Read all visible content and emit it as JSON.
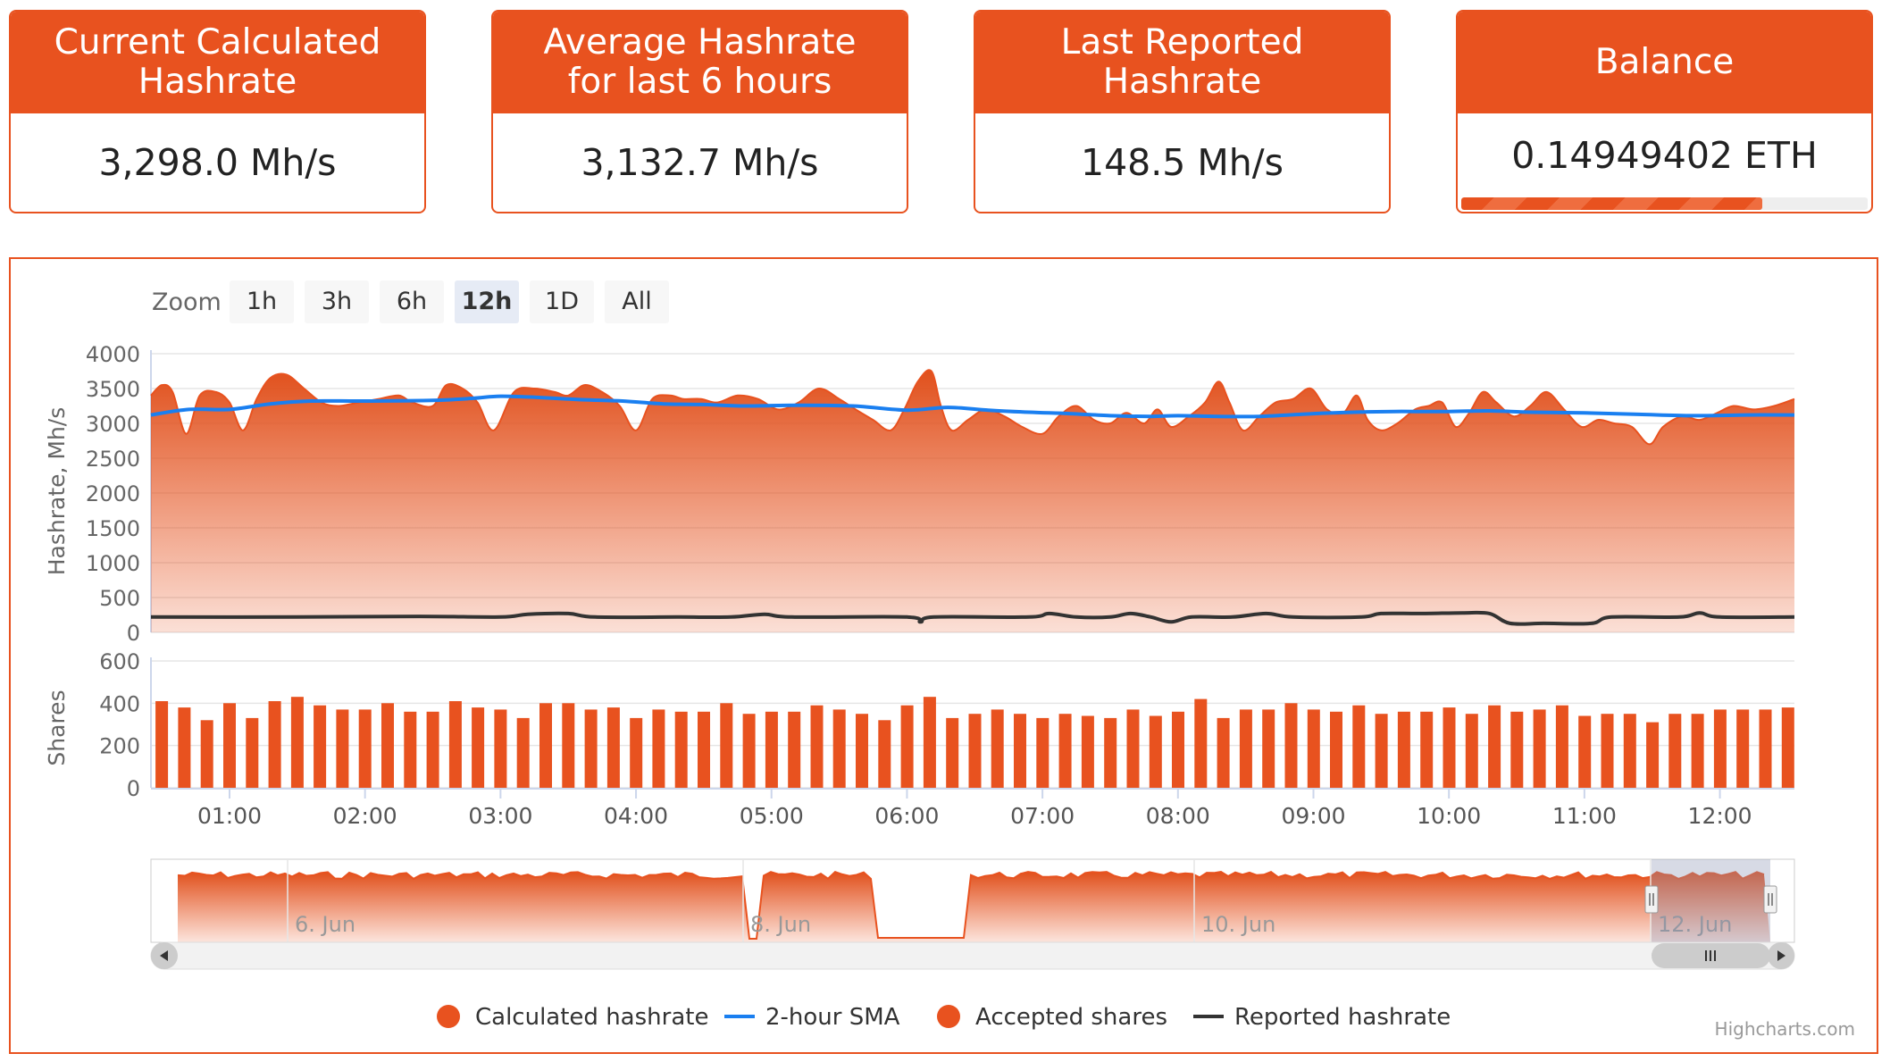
{
  "cards": [
    {
      "title": "Current Calculated\nHashrate",
      "value": "3,298.0 Mh/s"
    },
    {
      "title": "Average Hashrate\nfor last 6 hours",
      "value": "3,132.7 Mh/s"
    },
    {
      "title": "Last Reported\nHashrate",
      "value": "148.5 Mh/s"
    },
    {
      "title": "Balance",
      "value": "0.14949402 ETH",
      "progress_fraction": 0.74
    }
  ],
  "zoom": {
    "label": "Zoom",
    "buttons": [
      "1h",
      "3h",
      "6h",
      "12h",
      "1D",
      "All"
    ],
    "selected": "12h"
  },
  "colors": {
    "accent": "#e8521f",
    "sma": "#1a7ff0",
    "reported": "#333333",
    "button_bg": "#f7f7f7",
    "button_selected_bg": "#e6ebf5"
  },
  "chart_data": [
    {
      "type": "area",
      "ylabel": "Hashrate, Mh/s",
      "ylim": [
        0,
        4000
      ],
      "yticks": [
        0,
        500,
        1000,
        1500,
        2000,
        2500,
        3000,
        3500,
        4000
      ],
      "xlim": [
        0.42,
        12.55
      ],
      "xticks": [
        {
          "v": 1,
          "label": "01:00"
        },
        {
          "v": 2,
          "label": "02:00"
        },
        {
          "v": 3,
          "label": "03:00"
        },
        {
          "v": 4,
          "label": "04:00"
        },
        {
          "v": 5,
          "label": "05:00"
        },
        {
          "v": 6,
          "label": "06:00"
        },
        {
          "v": 7,
          "label": "07:00"
        },
        {
          "v": 8,
          "label": "08:00"
        },
        {
          "v": 9,
          "label": "09:00"
        },
        {
          "v": 10,
          "label": "10:00"
        },
        {
          "v": 11,
          "label": "11:00"
        },
        {
          "v": 12,
          "label": "12:00"
        }
      ],
      "series": [
        {
          "name": "Calculated hashrate",
          "type": "area",
          "color": "#e8521f",
          "points": [
            [
              0.42,
              3400
            ],
            [
              0.5,
              3550
            ],
            [
              0.58,
              3450
            ],
            [
              0.68,
              2850
            ],
            [
              0.78,
              3400
            ],
            [
              0.9,
              3450
            ],
            [
              1.0,
              3300
            ],
            [
              1.1,
              2900
            ],
            [
              1.2,
              3350
            ],
            [
              1.3,
              3650
            ],
            [
              1.42,
              3700
            ],
            [
              1.55,
              3500
            ],
            [
              1.68,
              3300
            ],
            [
              1.8,
              3250
            ],
            [
              1.95,
              3300
            ],
            [
              2.1,
              3350
            ],
            [
              2.25,
              3400
            ],
            [
              2.35,
              3300
            ],
            [
              2.5,
              3250
            ],
            [
              2.6,
              3550
            ],
            [
              2.72,
              3500
            ],
            [
              2.83,
              3300
            ],
            [
              2.95,
              2900
            ],
            [
              3.1,
              3450
            ],
            [
              3.25,
              3500
            ],
            [
              3.4,
              3450
            ],
            [
              3.5,
              3400
            ],
            [
              3.62,
              3550
            ],
            [
              3.75,
              3450
            ],
            [
              3.88,
              3250
            ],
            [
              4.0,
              2900
            ],
            [
              4.12,
              3350
            ],
            [
              4.25,
              3400
            ],
            [
              4.35,
              3350
            ],
            [
              4.48,
              3350
            ],
            [
              4.6,
              3300
            ],
            [
              4.75,
              3400
            ],
            [
              4.9,
              3350
            ],
            [
              5.05,
              3200
            ],
            [
              5.2,
              3300
            ],
            [
              5.35,
              3500
            ],
            [
              5.5,
              3350
            ],
            [
              5.62,
              3200
            ],
            [
              5.75,
              3050
            ],
            [
              5.88,
              2900
            ],
            [
              5.98,
              3200
            ],
            [
              6.08,
              3600
            ],
            [
              6.18,
              3750
            ],
            [
              6.25,
              3250
            ],
            [
              6.33,
              2900
            ],
            [
              6.45,
              3050
            ],
            [
              6.58,
              3200
            ],
            [
              6.72,
              3100
            ],
            [
              6.85,
              2950
            ],
            [
              7.0,
              2850
            ],
            [
              7.12,
              3100
            ],
            [
              7.25,
              3250
            ],
            [
              7.38,
              3050
            ],
            [
              7.5,
              3000
            ],
            [
              7.62,
              3150
            ],
            [
              7.75,
              3000
            ],
            [
              7.85,
              3200
            ],
            [
              7.95,
              2950
            ],
            [
              8.08,
              3100
            ],
            [
              8.2,
              3300
            ],
            [
              8.3,
              3600
            ],
            [
              8.38,
              3300
            ],
            [
              8.48,
              2900
            ],
            [
              8.6,
              3100
            ],
            [
              8.72,
              3300
            ],
            [
              8.85,
              3350
            ],
            [
              8.98,
              3500
            ],
            [
              9.1,
              3200
            ],
            [
              9.22,
              3150
            ],
            [
              9.32,
              3400
            ],
            [
              9.4,
              3050
            ],
            [
              9.5,
              2900
            ],
            [
              9.62,
              3000
            ],
            [
              9.75,
              3200
            ],
            [
              9.85,
              3250
            ],
            [
              9.95,
              3300
            ],
            [
              10.05,
              2950
            ],
            [
              10.15,
              3150
            ],
            [
              10.25,
              3450
            ],
            [
              10.35,
              3300
            ],
            [
              10.48,
              3100
            ],
            [
              10.6,
              3250
            ],
            [
              10.72,
              3450
            ],
            [
              10.85,
              3200
            ],
            [
              10.98,
              2950
            ],
            [
              11.1,
              3050
            ],
            [
              11.22,
              3000
            ],
            [
              11.35,
              2950
            ],
            [
              11.48,
              2700
            ],
            [
              11.58,
              2950
            ],
            [
              11.72,
              3100
            ],
            [
              11.85,
              3050
            ],
            [
              11.98,
              3150
            ],
            [
              12.1,
              3250
            ],
            [
              12.25,
              3200
            ],
            [
              12.4,
              3250
            ],
            [
              12.55,
              3350
            ]
          ]
        },
        {
          "name": "2-hour SMA",
          "type": "line",
          "color": "#1a7ff0",
          "points": [
            [
              0.42,
              3120
            ],
            [
              0.7,
              3200
            ],
            [
              1.0,
              3200
            ],
            [
              1.3,
              3280
            ],
            [
              1.6,
              3320
            ],
            [
              2.0,
              3320
            ],
            [
              2.5,
              3330
            ],
            [
              2.8,
              3360
            ],
            [
              3.0,
              3390
            ],
            [
              3.3,
              3370
            ],
            [
              3.6,
              3340
            ],
            [
              3.9,
              3320
            ],
            [
              4.2,
              3280
            ],
            [
              4.5,
              3270
            ],
            [
              4.8,
              3250
            ],
            [
              5.2,
              3260
            ],
            [
              5.6,
              3250
            ],
            [
              6.0,
              3190
            ],
            [
              6.3,
              3230
            ],
            [
              6.6,
              3190
            ],
            [
              6.9,
              3160
            ],
            [
              7.2,
              3140
            ],
            [
              7.5,
              3110
            ],
            [
              7.8,
              3100
            ],
            [
              8.0,
              3110
            ],
            [
              8.3,
              3100
            ],
            [
              8.6,
              3100
            ],
            [
              9.0,
              3140
            ],
            [
              9.3,
              3160
            ],
            [
              9.6,
              3170
            ],
            [
              10.0,
              3170
            ],
            [
              10.3,
              3180
            ],
            [
              10.6,
              3160
            ],
            [
              11.0,
              3150
            ],
            [
              11.4,
              3130
            ],
            [
              11.8,
              3110
            ],
            [
              12.2,
              3120
            ],
            [
              12.55,
              3120
            ]
          ]
        },
        {
          "name": "Reported hashrate",
          "type": "line",
          "color": "#333333",
          "points": [
            [
              0.42,
              220
            ],
            [
              1.5,
              220
            ],
            [
              2.4,
              230
            ],
            [
              3.0,
              220
            ],
            [
              3.2,
              260
            ],
            [
              3.5,
              270
            ],
            [
              3.7,
              220
            ],
            [
              4.3,
              220
            ],
            [
              4.7,
              220
            ],
            [
              4.95,
              260
            ],
            [
              5.15,
              220
            ],
            [
              6.0,
              220
            ],
            [
              6.1,
              150
            ],
            [
              6.2,
              220
            ],
            [
              6.9,
              220
            ],
            [
              7.05,
              270
            ],
            [
              7.25,
              220
            ],
            [
              7.5,
              220
            ],
            [
              7.65,
              270
            ],
            [
              7.8,
              220
            ],
            [
              7.95,
              150
            ],
            [
              8.1,
              220
            ],
            [
              8.4,
              220
            ],
            [
              8.65,
              270
            ],
            [
              8.85,
              220
            ],
            [
              9.35,
              220
            ],
            [
              9.5,
              270
            ],
            [
              9.8,
              270
            ],
            [
              10.1,
              280
            ],
            [
              10.3,
              270
            ],
            [
              10.45,
              130
            ],
            [
              10.7,
              130
            ],
            [
              11.05,
              130
            ],
            [
              11.2,
              220
            ],
            [
              11.7,
              220
            ],
            [
              11.85,
              280
            ],
            [
              12.0,
              220
            ],
            [
              12.55,
              220
            ]
          ]
        }
      ]
    },
    {
      "type": "bar",
      "name": "Accepted shares",
      "ylabel": "Shares",
      "ylim": [
        0,
        600
      ],
      "yticks": [
        0,
        200,
        400,
        600
      ],
      "x_start": 0.5,
      "x_step": 0.1667,
      "values": [
        410,
        380,
        320,
        400,
        330,
        410,
        430,
        390,
        370,
        370,
        400,
        360,
        360,
        410,
        380,
        370,
        330,
        400,
        400,
        370,
        380,
        330,
        370,
        360,
        360,
        400,
        350,
        360,
        360,
        390,
        370,
        350,
        320,
        390,
        430,
        330,
        350,
        370,
        350,
        330,
        350,
        340,
        330,
        370,
        340,
        360,
        420,
        330,
        370,
        370,
        400,
        370,
        360,
        390,
        350,
        360,
        360,
        380,
        350,
        390,
        360,
        370,
        390,
        340,
        350,
        350,
        310,
        350,
        350,
        370,
        370,
        370,
        380
      ],
      "color": "#e8521f"
    },
    {
      "type": "area",
      "name": "navigator",
      "xticks": [
        "6. Jun",
        "8. Jun",
        "10. Jun",
        "12. Jun"
      ]
    }
  ],
  "legend": [
    {
      "label": "Calculated hashrate",
      "symbol": "circle",
      "color": "#e8521f"
    },
    {
      "label": "2-hour SMA",
      "symbol": "line",
      "color": "#1a7ff0"
    },
    {
      "label": "Accepted shares",
      "symbol": "circle",
      "color": "#e8521f"
    },
    {
      "label": "Reported hashrate",
      "symbol": "line",
      "color": "#333333"
    }
  ],
  "credits": "Highcharts.com"
}
